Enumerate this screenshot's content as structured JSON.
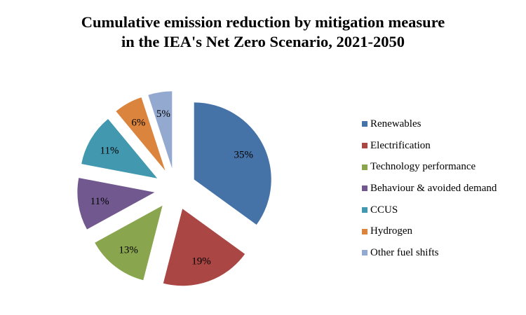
{
  "chart_data": {
    "type": "pie",
    "title_lines": [
      "Cumulative emission reduction by mitigation measure",
      "in the IEA's Net Zero Scenario, 2021-2050"
    ],
    "legend_position": "right",
    "exploded": true,
    "series": [
      {
        "name": "Renewables",
        "value": 35,
        "label": "35%",
        "color": "#4572A7"
      },
      {
        "name": "Electrification",
        "value": 19,
        "label": "19%",
        "color": "#AA4643"
      },
      {
        "name": "Technology performance",
        "value": 13,
        "label": "13%",
        "color": "#89A54E"
      },
      {
        "name": "Behaviour & avoided demand",
        "value": 11,
        "label": "11%",
        "color": "#71588F"
      },
      {
        "name": "CCUS",
        "value": 11,
        "label": "11%",
        "color": "#4198AF"
      },
      {
        "name": "Hydrogen",
        "value": 6,
        "label": "6%",
        "color": "#DB843D"
      },
      {
        "name": "Other fuel shifts",
        "value": 5,
        "label": "5%",
        "color": "#93A9CF"
      }
    ]
  }
}
